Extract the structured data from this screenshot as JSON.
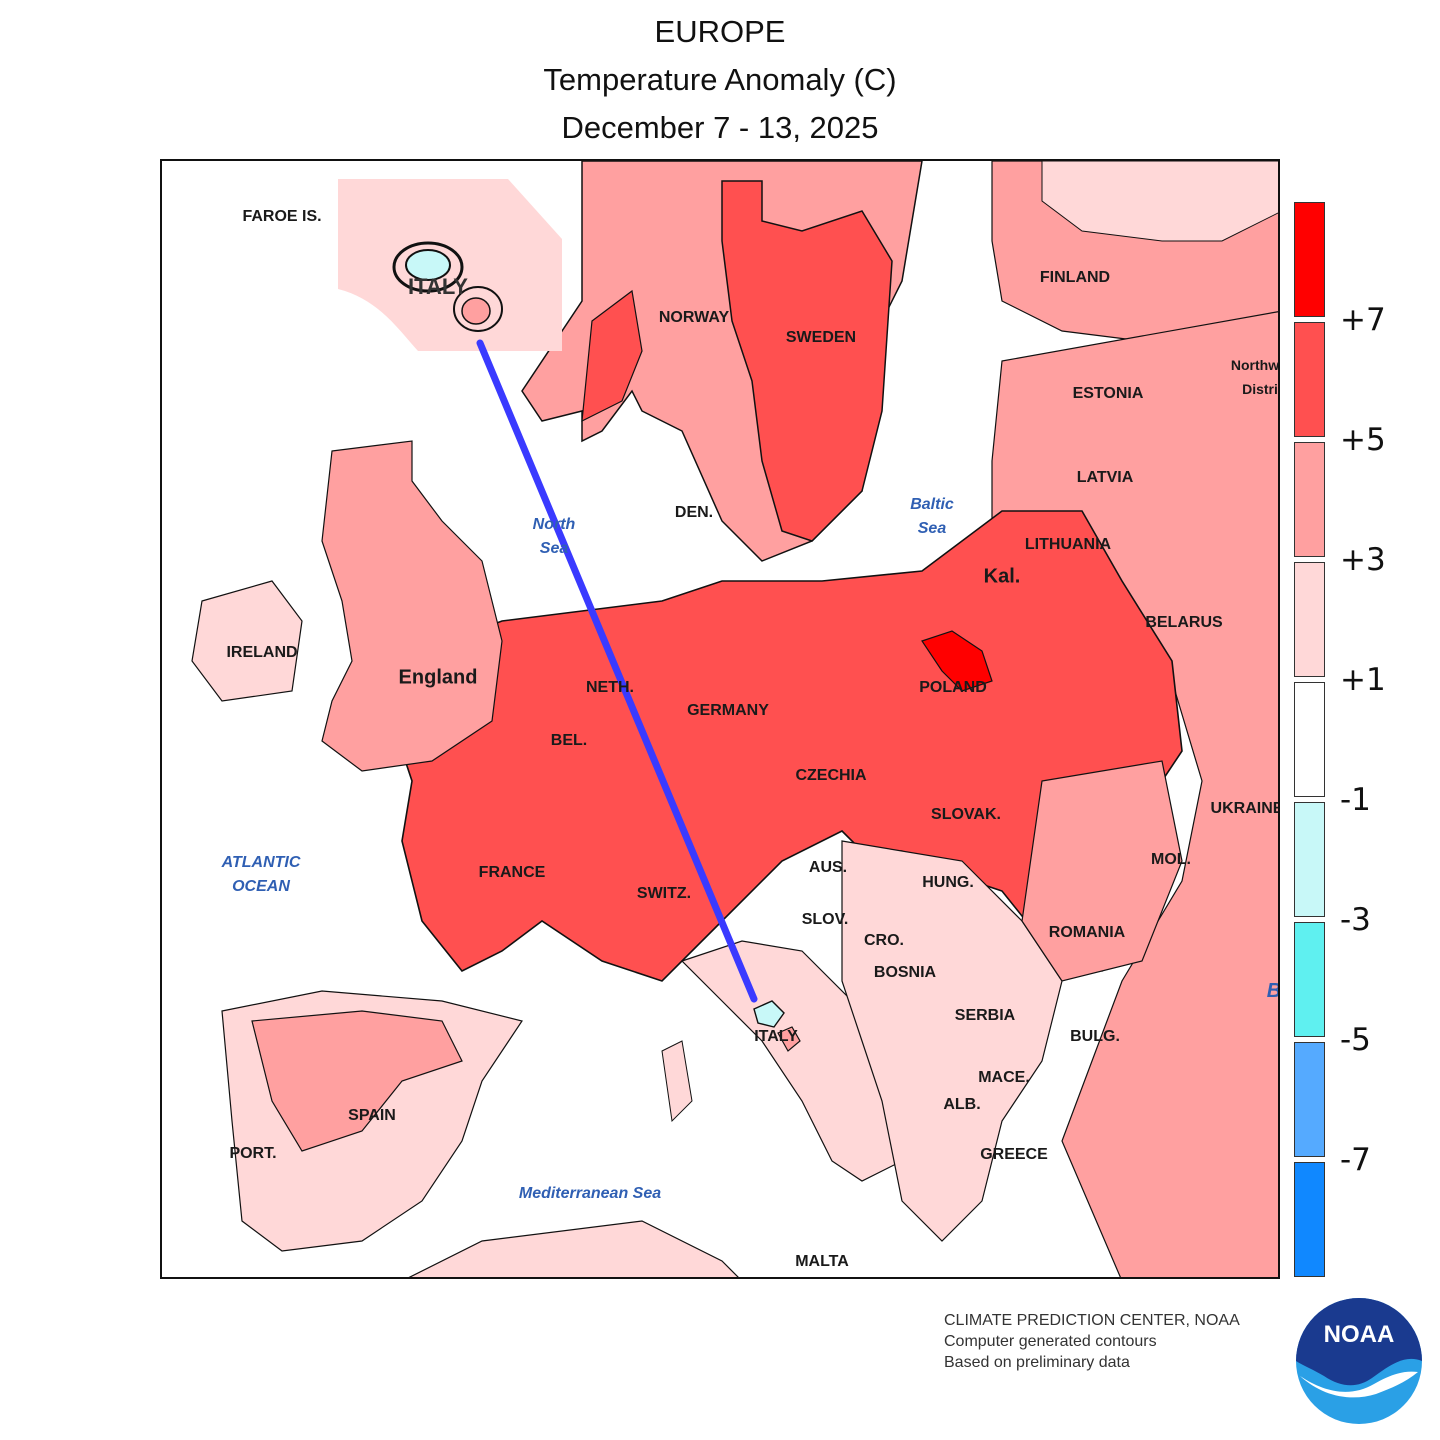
{
  "title": {
    "line1": "EUROPE",
    "line2": "Temperature Anomaly (C)",
    "line3": "December 7 - 13, 2025"
  },
  "country_labels": {
    "faroe": "FAROE IS.",
    "norway": "NORWAY",
    "sweden": "SWEDEN",
    "finland": "FINLAND",
    "estonia": "ESTONIA",
    "latvia": "LATVIA",
    "lithuania": "LITHUANIA",
    "kaliningrad": "Kal.",
    "belarus": "BELARUS",
    "northwest_1": "Northw",
    "northwest_2": "Distri",
    "denmark": "DEN.",
    "ireland": "IRELAND",
    "england": "England",
    "netherlands": "NETH.",
    "belgium": "BEL.",
    "germany": "GERMANY",
    "poland": "POLAND",
    "czechia": "CZECHIA",
    "slovakia": "SLOVAK.",
    "ukraine": "UKRAINE",
    "moldova": "MOL.",
    "france": "FRANCE",
    "switzerland": "SWITZ.",
    "austria": "AUS.",
    "hungary": "HUNG.",
    "slovenia": "SLOV.",
    "croatia": "CRO.",
    "bosnia": "BOSNIA",
    "romania": "ROMANIA",
    "serbia": "SERBIA",
    "bulgaria": "BULG.",
    "macedonia": "MACE.",
    "albania": "ALB.",
    "greece": "GREECE",
    "spain": "SPAIN",
    "portugal": "PORT.",
    "italy": "ITALY",
    "malta": "MALTA"
  },
  "sea_labels": {
    "north_sea_1": "North",
    "north_sea_2": "Sea",
    "baltic_1": "Baltic",
    "baltic_2": "Sea",
    "atlantic_1": "ATLANTIC",
    "atlantic_2": "OCEAN",
    "mediterranean": "Mediterranean Sea",
    "black_sea_partial": "B"
  },
  "legend": {
    "bins": [
      {
        "range": "> +7",
        "color": "#ff0000"
      },
      {
        "range": "+5 to +7",
        "color": "#ff5050"
      },
      {
        "range": "+3 to +5",
        "color": "#ffa0a0"
      },
      {
        "range": "+1 to +3",
        "color": "#ffd8d8"
      },
      {
        "range": "-1 to +1",
        "color": "#ffffff"
      },
      {
        "range": "-3 to -1",
        "color": "#c8f8f8"
      },
      {
        "range": "-5 to -3",
        "color": "#5ff0f0"
      },
      {
        "range": "-7 to -5",
        "color": "#55aaff"
      },
      {
        "range": "< -7",
        "color": "#1088ff"
      }
    ],
    "ticks": [
      "+7",
      "+5",
      "+3",
      "+1",
      "-1",
      "-3",
      "-5",
      "-7"
    ]
  },
  "inset": {
    "label": "ITALY",
    "connector_color": "#3a3aff"
  },
  "credit": {
    "line1": "CLIMATE PREDICTION CENTER, NOAA",
    "line2": "Computer generated contours",
    "line3": "Based on preliminary data"
  },
  "logo": {
    "text": "NOAA",
    "name": "noaa-logo",
    "colors": {
      "dark": "#1a3a8f",
      "light": "#2aa0e6"
    }
  }
}
